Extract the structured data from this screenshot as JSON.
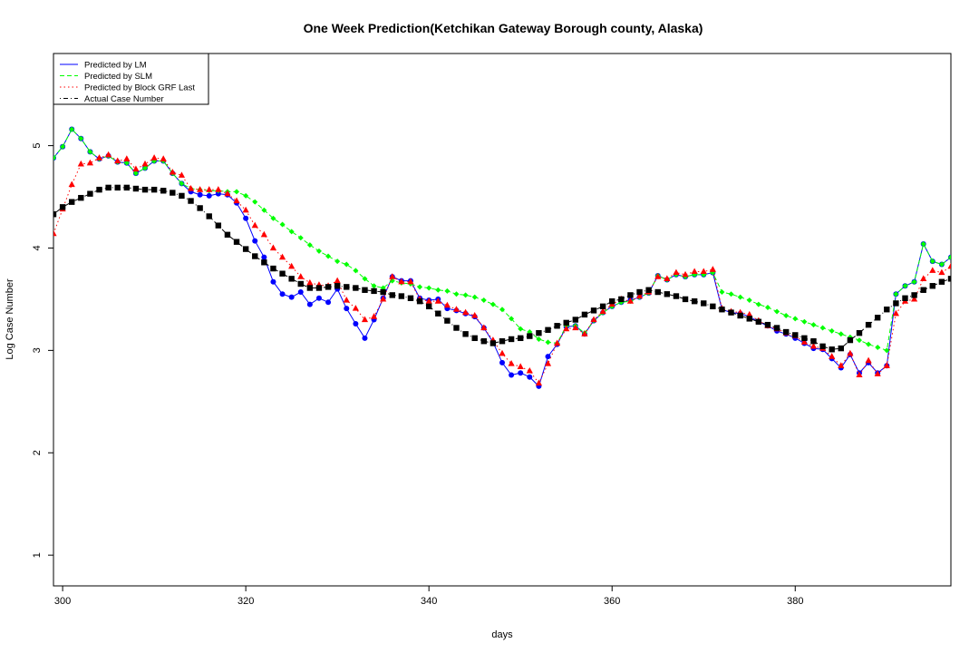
{
  "chart_data": {
    "type": "line",
    "title": "One Week Prediction(Ketchikan Gateway Borough county, Alaska)",
    "xlabel": "days",
    "ylabel": "Log Case Number",
    "xlim": [
      299,
      397
    ],
    "ylim": [
      0.7,
      5.9
    ],
    "xticks": [
      300,
      320,
      340,
      360,
      380
    ],
    "yticks": [
      1,
      2,
      3,
      4,
      5
    ],
    "legend_position": "top-left",
    "x": [
      299,
      300,
      301,
      302,
      303,
      304,
      305,
      306,
      307,
      308,
      309,
      310,
      311,
      312,
      313,
      314,
      315,
      316,
      317,
      318,
      319,
      320,
      321,
      322,
      323,
      324,
      325,
      326,
      327,
      328,
      329,
      330,
      331,
      332,
      333,
      334,
      335,
      336,
      337,
      338,
      339,
      340,
      341,
      342,
      343,
      344,
      345,
      346,
      347,
      348,
      349,
      350,
      351,
      352,
      353,
      354,
      355,
      356,
      357,
      358,
      359,
      360,
      361,
      362,
      363,
      364,
      365,
      366,
      367,
      368,
      369,
      370,
      371,
      372,
      373,
      374,
      375,
      376,
      377,
      378,
      379,
      380,
      381,
      382,
      383,
      384,
      385,
      386,
      387,
      388,
      389,
      390,
      391,
      392,
      393,
      394,
      395,
      396,
      397
    ],
    "series": [
      {
        "name": "Predicted by LM",
        "line_style": "solid",
        "marker": "circle",
        "color": "#0000ff",
        "values": [
          4.88,
          4.99,
          5.16,
          5.07,
          4.94,
          4.87,
          4.9,
          4.84,
          4.83,
          4.73,
          4.78,
          4.85,
          4.85,
          4.73,
          4.63,
          4.55,
          4.52,
          4.51,
          4.53,
          4.52,
          4.44,
          4.29,
          4.07,
          3.91,
          3.67,
          3.55,
          3.52,
          3.57,
          3.45,
          3.51,
          3.47,
          3.6,
          3.41,
          3.26,
          3.12,
          3.3,
          3.51,
          3.72,
          3.68,
          3.68,
          3.51,
          3.49,
          3.5,
          3.41,
          3.39,
          3.36,
          3.33,
          3.22,
          3.08,
          2.88,
          2.76,
          2.78,
          2.74,
          2.65,
          2.94,
          3.06,
          3.23,
          3.24,
          3.16,
          3.29,
          3.37,
          3.43,
          3.47,
          3.49,
          3.52,
          3.56,
          3.73,
          3.69,
          3.74,
          3.72,
          3.74,
          3.74,
          3.76,
          3.4,
          3.37,
          3.36,
          3.33,
          3.28,
          3.24,
          3.19,
          3.16,
          3.12,
          3.07,
          3.02,
          3.01,
          2.92,
          2.83,
          2.96,
          2.78,
          2.88,
          2.78,
          2.85,
          3.55,
          3.63,
          3.67,
          4.04,
          3.87,
          3.84,
          3.91
        ]
      },
      {
        "name": "Predicted by SLM",
        "line_style": "dashed",
        "marker": "diamond",
        "color": "#00ff00",
        "values": [
          4.88,
          4.99,
          5.16,
          5.07,
          4.94,
          4.87,
          4.9,
          4.84,
          4.83,
          4.73,
          4.78,
          4.85,
          4.85,
          4.73,
          4.63,
          4.58,
          4.57,
          4.56,
          4.56,
          4.55,
          4.55,
          4.51,
          4.45,
          4.37,
          4.29,
          4.23,
          4.16,
          4.1,
          4.03,
          3.97,
          3.92,
          3.87,
          3.84,
          3.78,
          3.7,
          3.63,
          3.61,
          3.68,
          3.66,
          3.65,
          3.62,
          3.61,
          3.59,
          3.58,
          3.55,
          3.54,
          3.52,
          3.49,
          3.45,
          3.4,
          3.31,
          3.21,
          3.18,
          3.11,
          3.08,
          3.07,
          3.24,
          3.24,
          3.17,
          3.29,
          3.37,
          3.43,
          3.47,
          3.48,
          3.52,
          3.56,
          3.73,
          3.69,
          3.74,
          3.72,
          3.74,
          3.74,
          3.76,
          3.57,
          3.55,
          3.52,
          3.49,
          3.45,
          3.42,
          3.38,
          3.34,
          3.31,
          3.28,
          3.25,
          3.22,
          3.19,
          3.16,
          3.13,
          3.1,
          3.06,
          3.03,
          3.0,
          3.55,
          3.63,
          3.67,
          4.04,
          3.87,
          3.84,
          3.91
        ]
      },
      {
        "name": "Predicted by Block GRF Last",
        "line_style": "dotted",
        "marker": "triangle",
        "color": "#ff0000",
        "values": [
          4.14,
          4.38,
          4.62,
          4.82,
          4.83,
          4.88,
          4.91,
          4.85,
          4.87,
          4.77,
          4.82,
          4.88,
          4.87,
          4.74,
          4.71,
          4.58,
          4.57,
          4.57,
          4.57,
          4.53,
          4.46,
          4.37,
          4.22,
          4.13,
          4.0,
          3.91,
          3.82,
          3.72,
          3.66,
          3.64,
          3.63,
          3.68,
          3.49,
          3.41,
          3.3,
          3.33,
          3.5,
          3.72,
          3.67,
          3.67,
          3.5,
          3.48,
          3.48,
          3.44,
          3.4,
          3.37,
          3.34,
          3.22,
          3.1,
          2.97,
          2.87,
          2.84,
          2.8,
          2.68,
          2.87,
          3.07,
          3.21,
          3.22,
          3.16,
          3.3,
          3.38,
          3.45,
          3.5,
          3.48,
          3.53,
          3.57,
          3.72,
          3.7,
          3.76,
          3.74,
          3.77,
          3.77,
          3.79,
          3.41,
          3.38,
          3.37,
          3.35,
          3.29,
          3.24,
          3.21,
          3.17,
          3.14,
          3.08,
          3.04,
          3.02,
          2.94,
          2.85,
          2.97,
          2.76,
          2.9,
          2.77,
          2.85,
          3.36,
          3.48,
          3.5,
          3.7,
          3.78,
          3.76,
          3.82
        ]
      },
      {
        "name": "Actual Case Number",
        "line_style": "dotdash",
        "marker": "square",
        "color": "#000000",
        "values": [
          4.33,
          4.4,
          4.45,
          4.49,
          4.53,
          4.57,
          4.59,
          4.59,
          4.59,
          4.58,
          4.57,
          4.57,
          4.56,
          4.54,
          4.51,
          4.46,
          4.39,
          4.31,
          4.22,
          4.13,
          4.06,
          3.99,
          3.92,
          3.86,
          3.8,
          3.75,
          3.7,
          3.65,
          3.61,
          3.61,
          3.62,
          3.63,
          3.62,
          3.61,
          3.59,
          3.58,
          3.57,
          3.54,
          3.53,
          3.51,
          3.48,
          3.43,
          3.36,
          3.29,
          3.22,
          3.16,
          3.12,
          3.09,
          3.07,
          3.09,
          3.11,
          3.12,
          3.14,
          3.17,
          3.2,
          3.24,
          3.27,
          3.3,
          3.35,
          3.39,
          3.43,
          3.48,
          3.5,
          3.54,
          3.57,
          3.59,
          3.57,
          3.55,
          3.53,
          3.5,
          3.48,
          3.46,
          3.43,
          3.4,
          3.37,
          3.34,
          3.31,
          3.28,
          3.25,
          3.22,
          3.18,
          3.15,
          3.12,
          3.09,
          3.04,
          3.01,
          3.02,
          3.1,
          3.17,
          3.25,
          3.32,
          3.4,
          3.46,
          3.51,
          3.54,
          3.59,
          3.63,
          3.67,
          3.7
        ]
      }
    ]
  }
}
